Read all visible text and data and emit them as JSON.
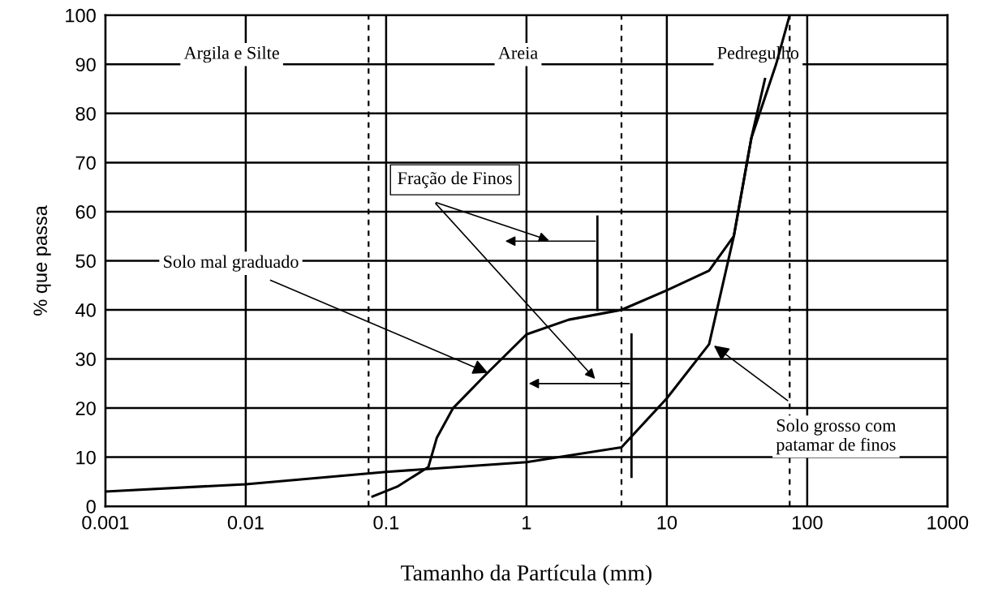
{
  "chart_data": {
    "type": "line",
    "xlabel": "Tamanho da Partícula (mm)",
    "ylabel": "% que passa",
    "log": "x",
    "xlim": [
      0.001,
      1000
    ],
    "xticks": [
      0.001,
      0.01,
      0.1,
      1,
      10,
      100,
      1000
    ],
    "ylim": [
      0,
      100
    ],
    "yticks": [
      0,
      10,
      20,
      30,
      40,
      50,
      60,
      70,
      80,
      90,
      100
    ],
    "grid": true,
    "legend": false,
    "marker": "none",
    "line_style": "solid",
    "series": [
      {
        "color": "#000000",
        "x": [
          0.08,
          0.12,
          0.2,
          0.23,
          0.3,
          0.52,
          1,
          2,
          4.75,
          10,
          20,
          30,
          40,
          50
        ],
        "values": [
          2,
          4,
          8,
          14,
          20,
          27,
          35,
          38,
          40,
          44,
          48,
          55,
          75,
          87
        ]
      },
      {
        "color": "#000000",
        "x": [
          0.001,
          0.01,
          0.1,
          1,
          4.75,
          10,
          20,
          30,
          40,
          60,
          75
        ],
        "values": [
          3,
          4.5,
          7,
          9,
          12,
          22,
          33,
          55,
          75,
          90,
          100
        ]
      }
    ],
    "ref_lines": [
      {
        "axis": "x",
        "value": 0.075,
        "line_style": "dashed",
        "color": "#000000"
      },
      {
        "axis": "x",
        "value": 4.75,
        "line_style": "dashed",
        "color": "#000000"
      },
      {
        "axis": "x",
        "value": 75,
        "line_style": "dashed",
        "color": "#000000"
      }
    ],
    "annotations": [
      "Argila e Silte",
      "Areia",
      "Pedregulho",
      "Fração de Finos",
      {
        "text": "Solo mal graduado",
        "x": 0.55,
        "y": 27
      },
      {
        "text": "Solo grosso com\npatamar de finos",
        "x": 21,
        "y": 33
      }
    ]
  }
}
